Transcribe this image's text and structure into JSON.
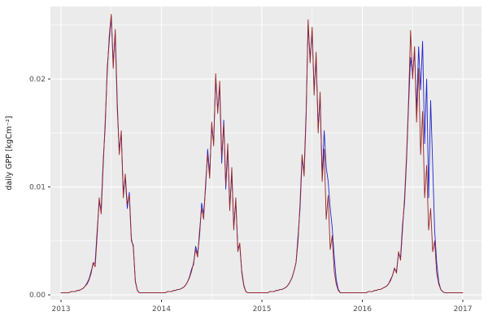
{
  "chart_data": {
    "type": "line",
    "title": "",
    "xlabel": "",
    "ylabel": "daily GPP [kgCm⁻²]",
    "panel_bg": "#EBEBEB",
    "grid_color": "#FFFFFF",
    "tick_label_color": "#4D4D4D",
    "axis_label_color": "#1A1A1A",
    "legend": "none",
    "grid": "on",
    "xlim": [
      2012.8947,
      2017.186
    ],
    "ylim": [
      -0.00045,
      0.02672
    ],
    "x_ticks": [
      2013,
      2014,
      2015,
      2016,
      2017
    ],
    "x_tick_labels": [
      "2013",
      "2014",
      "2015",
      "2016",
      "2017"
    ],
    "x_minor_ticks": [
      2013.5,
      2014.5,
      2015.5,
      2016.5
    ],
    "y_ticks": [
      0,
      0.01,
      0.02
    ],
    "y_tick_labels": [
      "0.00",
      "0.01",
      "0.02"
    ],
    "y_minor_ticks": [
      0.005,
      0.015,
      0.025
    ],
    "x_start": 2013,
    "x_step": 0.02,
    "series": [
      {
        "name": "blue",
        "color": "#2222CC",
        "values": [
          0.0002,
          0.0002,
          0.0002,
          0.0002,
          0.0002,
          0.0003,
          0.0003,
          0.0003,
          0.0004,
          0.0004,
          0.0005,
          0.0006,
          0.0008,
          0.0011,
          0.0015,
          0.0022,
          0.0028,
          0.003,
          0.006,
          0.0085,
          0.008,
          0.0125,
          0.0155,
          0.021,
          0.0235,
          0.0258,
          0.0215,
          0.0242,
          0.0172,
          0.0135,
          0.0148,
          0.0095,
          0.0108,
          0.008,
          0.0095,
          0.0052,
          0.0044,
          0.0013,
          0.0004,
          0.0002,
          0.0002,
          0.0002,
          0.0002,
          0.0002,
          0.0002,
          0.0002,
          0.0002,
          0.0002,
          0.0002,
          0.0002,
          0.0002,
          0.0002,
          0.0002,
          0.0003,
          0.0003,
          0.0003,
          0.0004,
          0.0004,
          0.0005,
          0.0005,
          0.0006,
          0.0007,
          0.0009,
          0.0012,
          0.0017,
          0.0024,
          0.0028,
          0.0045,
          0.0038,
          0.0055,
          0.0085,
          0.0075,
          0.01,
          0.0135,
          0.0112,
          0.0155,
          0.0142,
          0.02,
          0.0172,
          0.0192,
          0.0122,
          0.0162,
          0.0098,
          0.0135,
          0.0082,
          0.0112,
          0.0064,
          0.0086,
          0.0044,
          0.0045,
          0.0022,
          0.0009,
          0.0003,
          0.0002,
          0.0002,
          0.0002,
          0.0002,
          0.0002,
          0.0002,
          0.0002,
          0.0002,
          0.0002,
          0.0002,
          0.0002,
          0.0003,
          0.0003,
          0.0003,
          0.0004,
          0.0004,
          0.0005,
          0.0005,
          0.0006,
          0.0007,
          0.0009,
          0.0012,
          0.0016,
          0.0022,
          0.003,
          0.0055,
          0.008,
          0.0125,
          0.0115,
          0.017,
          0.025,
          0.022,
          0.0242,
          0.019,
          0.0218,
          0.0155,
          0.0182,
          0.011,
          0.0152,
          0.0118,
          0.0105,
          0.008,
          0.0062,
          0.0035,
          0.0014,
          0.0005,
          0.0002,
          0.0002,
          0.0002,
          0.0002,
          0.0002,
          0.0002,
          0.0002,
          0.0002,
          0.0002,
          0.0002,
          0.0002,
          0.0002,
          0.0002,
          0.0002,
          0.0003,
          0.0003,
          0.0003,
          0.0004,
          0.0004,
          0.0005,
          0.0005,
          0.0006,
          0.0007,
          0.0008,
          0.001,
          0.0014,
          0.0018,
          0.0024,
          0.0022,
          0.0038,
          0.0035,
          0.0065,
          0.0085,
          0.0125,
          0.0175,
          0.022,
          0.0205,
          0.0225,
          0.017,
          0.023,
          0.019,
          0.0235,
          0.014,
          0.02,
          0.009,
          0.018,
          0.012,
          0.006,
          0.003,
          0.0012,
          0.0005,
          0.0003,
          0.0002,
          0.0002,
          0.0002,
          0.0002,
          0.0002,
          0.0002,
          0.0002,
          0.0002,
          0.0002,
          0.0002
        ]
      },
      {
        "name": "red4",
        "color": "#992626",
        "values": [
          0.0002,
          0.0002,
          0.0002,
          0.0002,
          0.0002,
          0.0003,
          0.0003,
          0.0003,
          0.0004,
          0.0004,
          0.0005,
          0.0006,
          0.0008,
          0.001,
          0.0014,
          0.002,
          0.003,
          0.0026,
          0.0055,
          0.009,
          0.0075,
          0.012,
          0.016,
          0.0205,
          0.024,
          0.026,
          0.021,
          0.0246,
          0.0178,
          0.013,
          0.0152,
          0.009,
          0.0112,
          0.0084,
          0.0092,
          0.005,
          0.0046,
          0.0012,
          0.0004,
          0.0002,
          0.0002,
          0.0002,
          0.0002,
          0.0002,
          0.0002,
          0.0002,
          0.0002,
          0.0002,
          0.0002,
          0.0002,
          0.0002,
          0.0002,
          0.0002,
          0.0003,
          0.0003,
          0.0003,
          0.0004,
          0.0004,
          0.0005,
          0.0005,
          0.0006,
          0.0007,
          0.0009,
          0.0012,
          0.0016,
          0.0022,
          0.003,
          0.0042,
          0.0035,
          0.006,
          0.008,
          0.007,
          0.0105,
          0.013,
          0.0108,
          0.016,
          0.0138,
          0.0205,
          0.0168,
          0.0198,
          0.0128,
          0.0158,
          0.0102,
          0.014,
          0.0078,
          0.0118,
          0.006,
          0.009,
          0.004,
          0.0048,
          0.002,
          0.0008,
          0.0003,
          0.0002,
          0.0002,
          0.0002,
          0.0002,
          0.0002,
          0.0002,
          0.0002,
          0.0002,
          0.0002,
          0.0002,
          0.0002,
          0.0003,
          0.0003,
          0.0003,
          0.0004,
          0.0004,
          0.0005,
          0.0005,
          0.0006,
          0.0007,
          0.0009,
          0.0012,
          0.0016,
          0.0022,
          0.003,
          0.005,
          0.0085,
          0.013,
          0.011,
          0.0165,
          0.0255,
          0.0215,
          0.0248,
          0.0185,
          0.0225,
          0.015,
          0.0188,
          0.0105,
          0.0135,
          0.007,
          0.0092,
          0.0042,
          0.0055,
          0.0022,
          0.001,
          0.0004,
          0.0002,
          0.0002,
          0.0002,
          0.0002,
          0.0002,
          0.0002,
          0.0002,
          0.0002,
          0.0002,
          0.0002,
          0.0002,
          0.0002,
          0.0002,
          0.0002,
          0.0003,
          0.0003,
          0.0003,
          0.0004,
          0.0004,
          0.0005,
          0.0005,
          0.0006,
          0.0007,
          0.0008,
          0.001,
          0.0013,
          0.0018,
          0.0025,
          0.002,
          0.004,
          0.0032,
          0.006,
          0.009,
          0.013,
          0.018,
          0.0245,
          0.02,
          0.023,
          0.016,
          0.021,
          0.013,
          0.017,
          0.009,
          0.012,
          0.006,
          0.008,
          0.004,
          0.005,
          0.002,
          0.001,
          0.0005,
          0.0003,
          0.0002,
          0.0002,
          0.0002,
          0.0002,
          0.0002,
          0.0002,
          0.0002,
          0.0002,
          0.0002,
          0.0002
        ]
      }
    ]
  }
}
